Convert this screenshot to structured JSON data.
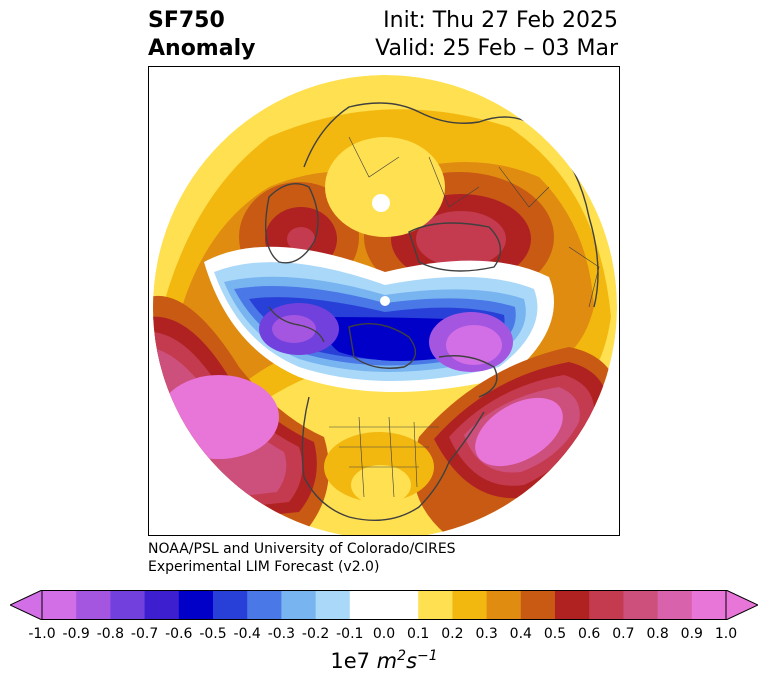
{
  "header": {
    "title_line1": "SF750",
    "title_line2": "Anomaly",
    "init": "Init: Thu 27 Feb 2025",
    "valid": "Valid: 25 Feb – 03 Mar"
  },
  "credit": {
    "line1": "NOAA/PSL and University of Colorado/CIRES",
    "line2": "Experimental LIM Forecast (v2.0)"
  },
  "colorbar": {
    "ticks": [
      "-1.0",
      "-0.9",
      "-0.8",
      "-0.7",
      "-0.6",
      "-0.5",
      "-0.4",
      "-0.3",
      "-0.2",
      "-0.1",
      "0.0",
      "0.1",
      "0.2",
      "0.3",
      "0.4",
      "0.5",
      "0.6",
      "0.7",
      "0.8",
      "0.9",
      "1.0"
    ],
    "colors": [
      "#d26ee6",
      "#a456e0",
      "#7240dc",
      "#3e1fd0",
      "#0000c8",
      "#2840d8",
      "#4a78e6",
      "#78b4f0",
      "#aad8f8",
      "#ffffff",
      "#ffffff",
      "#ffe050",
      "#f2b810",
      "#e08c10",
      "#c85a14",
      "#b02222",
      "#c43a4e",
      "#cc4f7c",
      "#d863ac",
      "#e875d8"
    ],
    "unit_base": "1e7",
    "unit_m": "m",
    "unit_m_exp": "2",
    "unit_s": "s",
    "unit_s_exp": "−1"
  },
  "map": {
    "projection": "north-polar-stereographic",
    "palette": {
      "neg4": "#d26ee6",
      "neg3": "#7240dc",
      "neg2": "#0000c8",
      "neg1": "#4a78e6",
      "neg0": "#aad8f8",
      "pos1": "#ffe050",
      "pos2": "#f2b810",
      "pos3": "#e08c10",
      "pos4": "#c85a14",
      "pos5": "#b02222",
      "pos6": "#c43a4e",
      "pos7": "#cc4f7c",
      "pos8": "#e875d8",
      "coast": "#404040"
    }
  }
}
